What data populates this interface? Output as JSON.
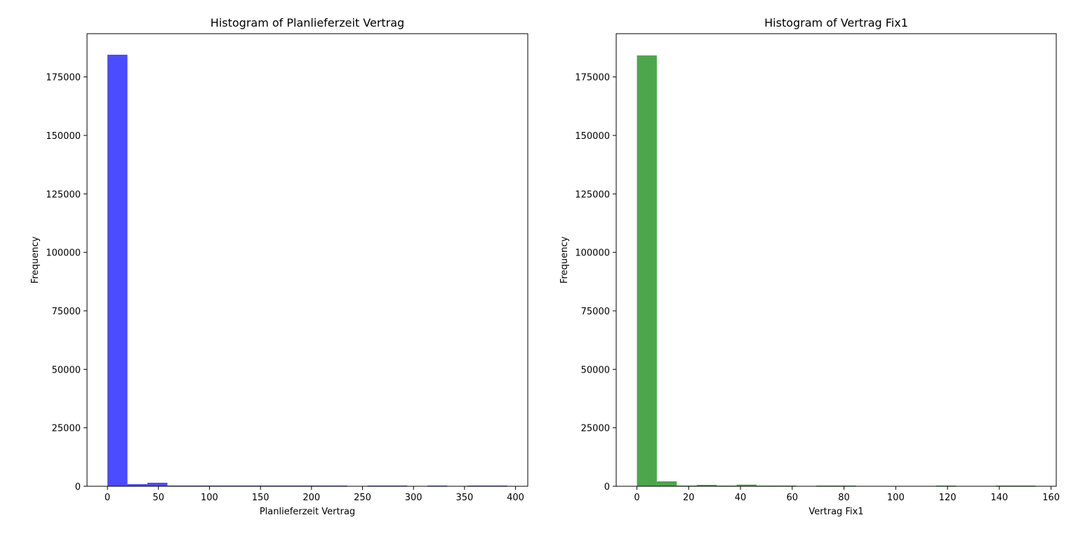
{
  "chart_data": [
    {
      "type": "bar",
      "title": "Histogram of Planlieferzeit Vertrag",
      "xlabel": "Planlieferzeit Vertrag",
      "ylabel": "Frequency",
      "xlim": [
        -20,
        412
      ],
      "ylim": [
        0,
        193500
      ],
      "xticks": [
        0,
        50,
        100,
        150,
        200,
        250,
        300,
        350,
        400
      ],
      "yticks": [
        0,
        25000,
        50000,
        75000,
        100000,
        125000,
        150000,
        175000
      ],
      "bin_width": 19.6,
      "bins": [
        {
          "x0": 0.0,
          "x1": 19.6,
          "value": 184500
        },
        {
          "x0": 19.6,
          "x1": 39.2,
          "value": 900
        },
        {
          "x0": 39.2,
          "x1": 58.8,
          "value": 1500
        },
        {
          "x0": 58.8,
          "x1": 78.4,
          "value": 250
        },
        {
          "x0": 78.4,
          "x1": 98.0,
          "value": 200
        },
        {
          "x0": 98.0,
          "x1": 117.6,
          "value": 300
        },
        {
          "x0": 117.6,
          "x1": 137.2,
          "value": 150
        },
        {
          "x0": 137.2,
          "x1": 156.8,
          "value": 200
        },
        {
          "x0": 156.8,
          "x1": 176.4,
          "value": 150
        },
        {
          "x0": 176.4,
          "x1": 196.0,
          "value": 200
        },
        {
          "x0": 196.0,
          "x1": 215.6,
          "value": 150
        },
        {
          "x0": 215.6,
          "x1": 235.2,
          "value": 100
        },
        {
          "x0": 235.2,
          "x1": 254.8,
          "value": 0
        },
        {
          "x0": 254.8,
          "x1": 274.4,
          "value": 100
        },
        {
          "x0": 274.4,
          "x1": 294.0,
          "value": 100
        },
        {
          "x0": 294.0,
          "x1": 313.6,
          "value": 0
        },
        {
          "x0": 313.6,
          "x1": 333.2,
          "value": 100
        },
        {
          "x0": 333.2,
          "x1": 352.8,
          "value": 0
        },
        {
          "x0": 352.8,
          "x1": 372.4,
          "value": 100
        },
        {
          "x0": 372.4,
          "x1": 392.0,
          "value": 100
        }
      ],
      "color": "#4b4bff",
      "grid": false
    },
    {
      "type": "bar",
      "title": "Histogram of Vertrag Fix1",
      "xlabel": "Vertrag Fix1",
      "ylabel": "Frequency",
      "xlim": [
        -8,
        162
      ],
      "ylim": [
        0,
        193500
      ],
      "xticks": [
        0,
        20,
        40,
        60,
        80,
        100,
        120,
        140,
        160
      ],
      "yticks": [
        0,
        25000,
        50000,
        75000,
        100000,
        125000,
        150000,
        175000
      ],
      "bin_width": 7.7,
      "bins": [
        {
          "x0": 0.0,
          "x1": 7.7,
          "value": 184200
        },
        {
          "x0": 7.7,
          "x1": 15.4,
          "value": 2100
        },
        {
          "x0": 15.4,
          "x1": 23.1,
          "value": 300
        },
        {
          "x0": 23.1,
          "x1": 30.8,
          "value": 600
        },
        {
          "x0": 30.8,
          "x1": 38.5,
          "value": 200
        },
        {
          "x0": 38.5,
          "x1": 46.2,
          "value": 700
        },
        {
          "x0": 46.2,
          "x1": 53.9,
          "value": 250
        },
        {
          "x0": 53.9,
          "x1": 61.6,
          "value": 200
        },
        {
          "x0": 61.6,
          "x1": 69.3,
          "value": 0
        },
        {
          "x0": 69.3,
          "x1": 77.0,
          "value": 200
        },
        {
          "x0": 77.0,
          "x1": 84.7,
          "value": 200
        },
        {
          "x0": 84.7,
          "x1": 92.4,
          "value": 0
        },
        {
          "x0": 92.4,
          "x1": 100.1,
          "value": 0
        },
        {
          "x0": 100.1,
          "x1": 107.8,
          "value": 0
        },
        {
          "x0": 107.8,
          "x1": 115.5,
          "value": 0
        },
        {
          "x0": 115.5,
          "x1": 123.2,
          "value": 150
        },
        {
          "x0": 123.2,
          "x1": 130.9,
          "value": 0
        },
        {
          "x0": 130.9,
          "x1": 138.6,
          "value": 0
        },
        {
          "x0": 138.6,
          "x1": 146.3,
          "value": 100
        },
        {
          "x0": 146.3,
          "x1": 154.0,
          "value": 100
        }
      ],
      "color": "#4ca64c",
      "grid": false
    }
  ]
}
